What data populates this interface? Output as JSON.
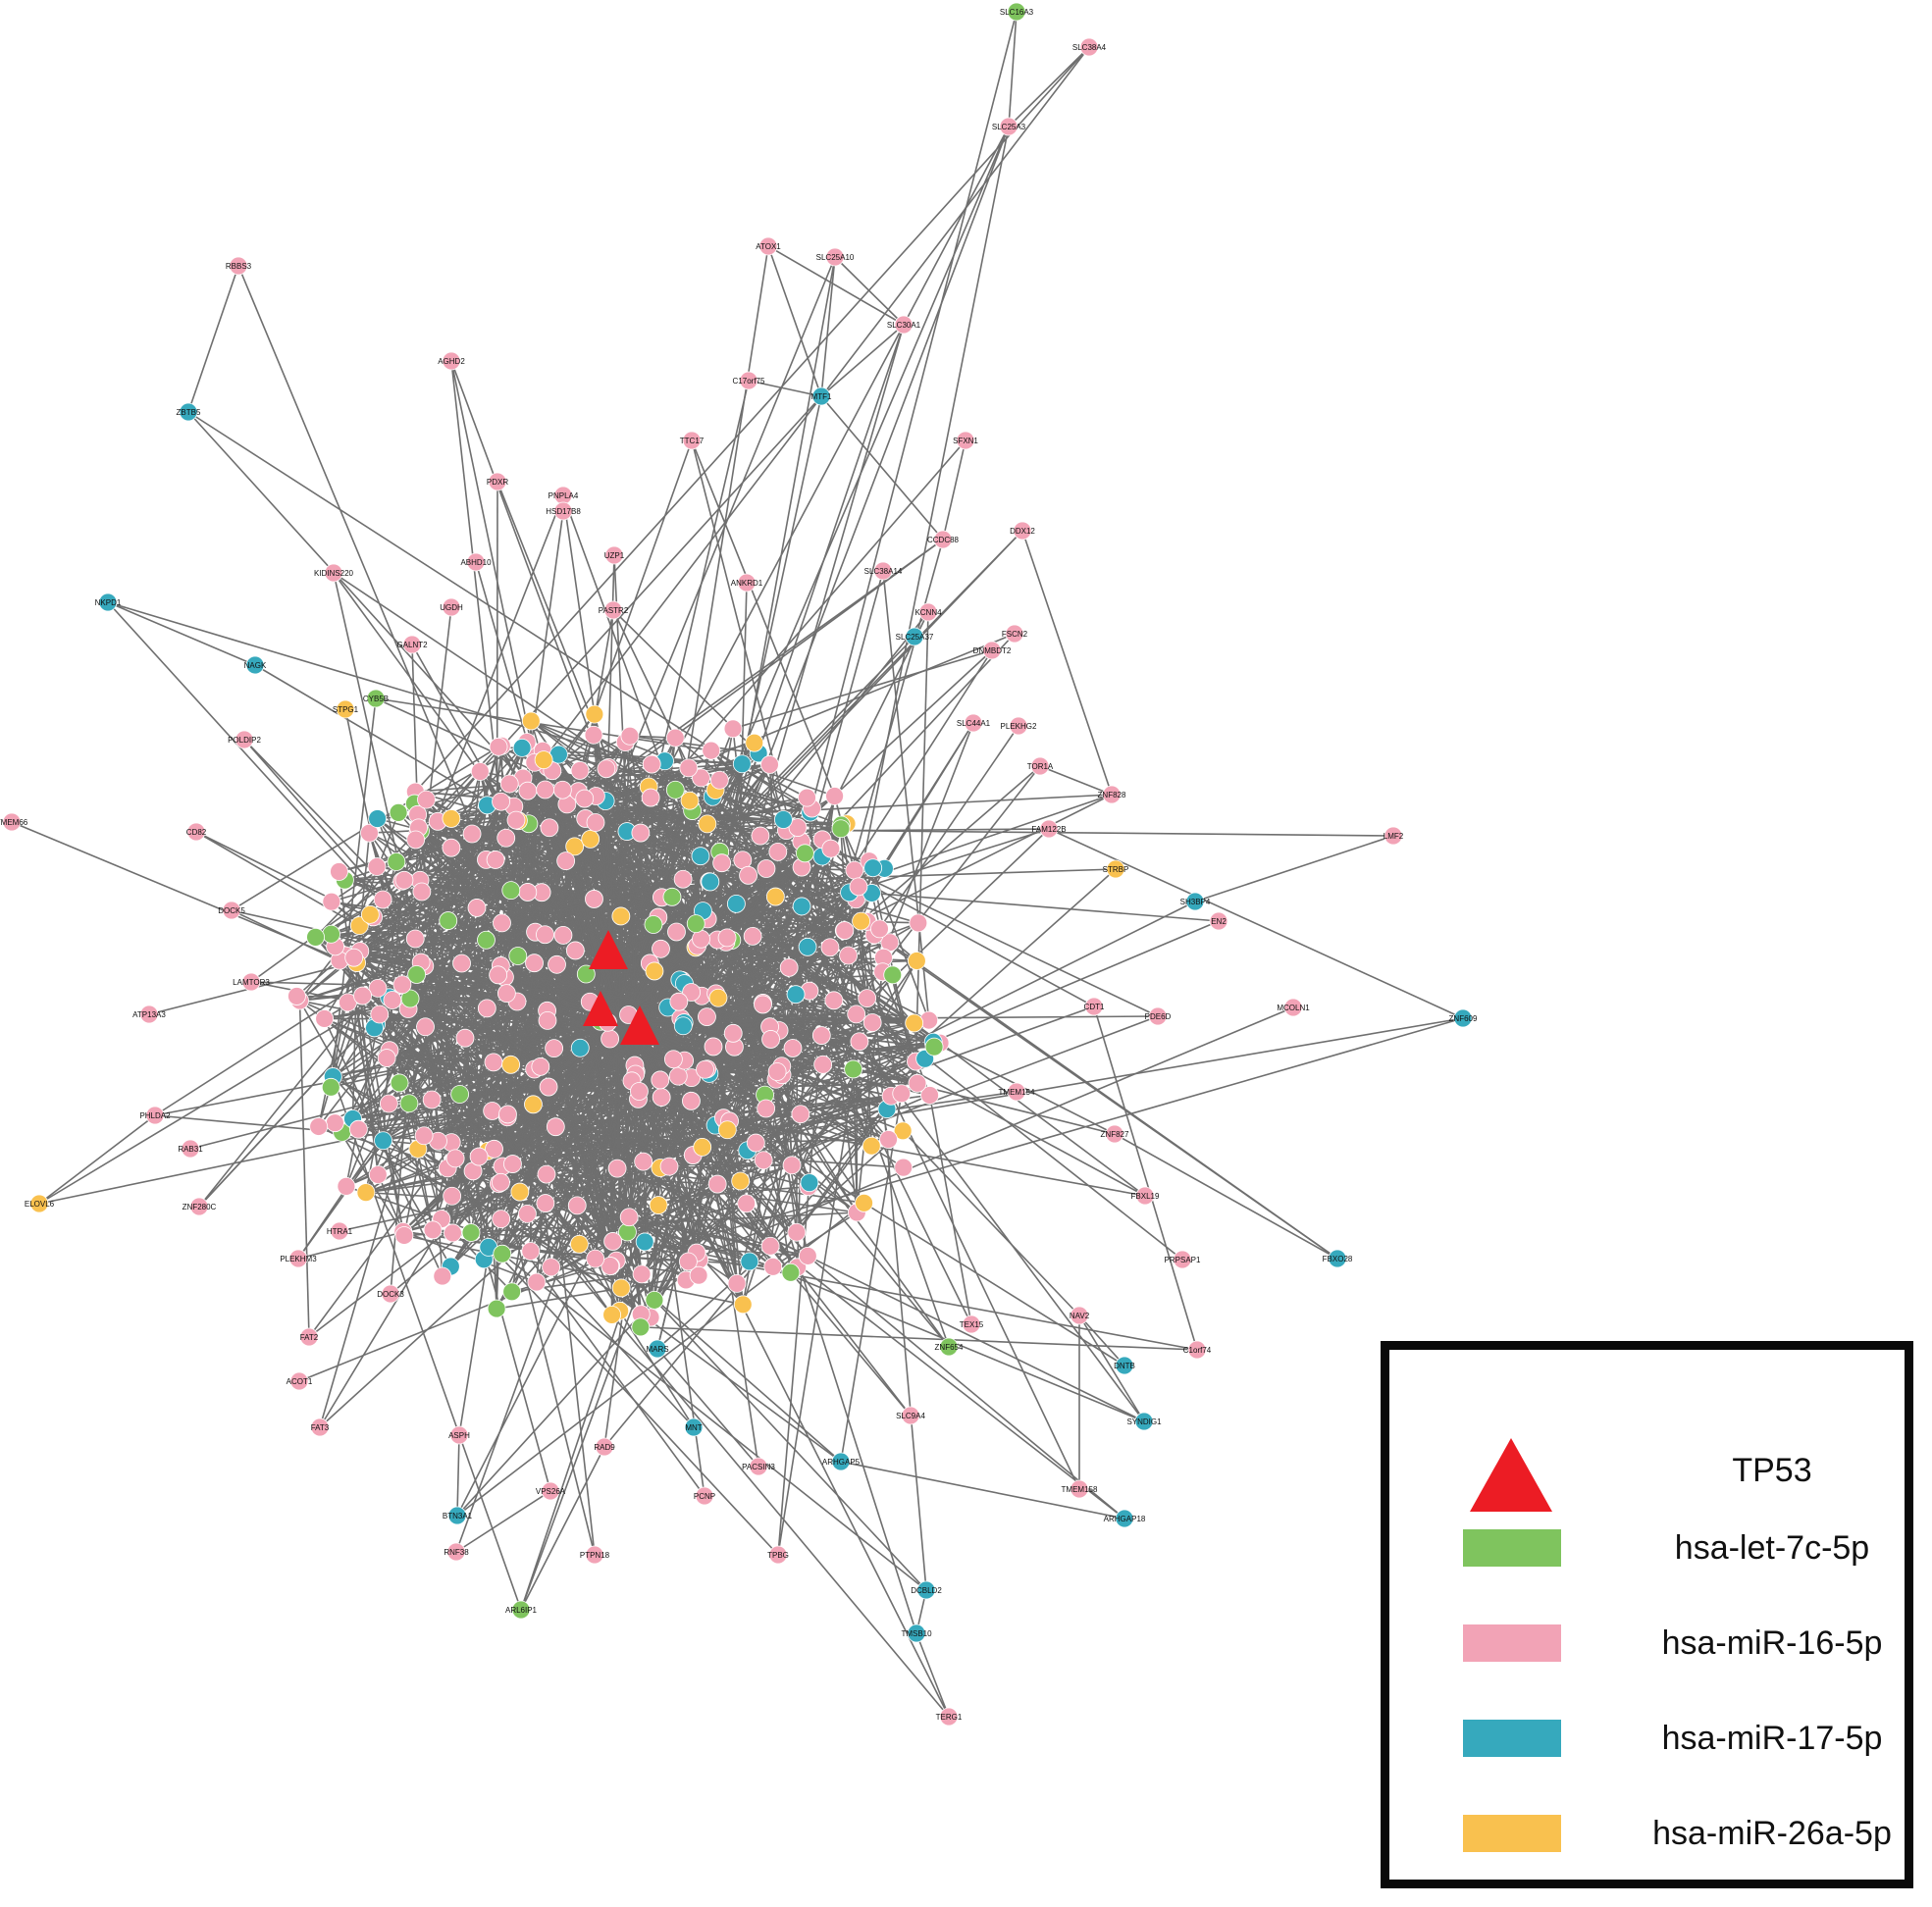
{
  "diagram": {
    "type": "network",
    "hub_node": "TP53",
    "colors": {
      "edge": "#6f6f6f",
      "hub": "#ec1c24",
      "hsa-let-7c-5p": "#7fc45e",
      "hsa-miR-16-5p": "#f2a3b6",
      "hsa-miR-17-5p": "#36a9bd",
      "hsa-miR-26a-5p": "#f9c14f"
    },
    "labeled_nodes": [
      {
        "id": "SLC16A3",
        "group": "hsa-let-7c-5p"
      },
      {
        "id": "SLC38A4",
        "group": "hsa-miR-16-5p"
      },
      {
        "id": "SLC25A3",
        "group": "hsa-miR-16-5p"
      },
      {
        "id": "ATOX1",
        "group": "hsa-miR-16-5p"
      },
      {
        "id": "SLC25A10",
        "group": "hsa-miR-16-5p"
      },
      {
        "id": "SLC30A1",
        "group": "hsa-miR-16-5p"
      },
      {
        "id": "RBBS3",
        "group": "hsa-miR-16-5p"
      },
      {
        "id": "ZBTB5",
        "group": "hsa-miR-17-5p"
      },
      {
        "id": "AGHD2",
        "group": "hsa-miR-16-5p"
      },
      {
        "id": "C17orf75",
        "group": "hsa-miR-16-5p"
      },
      {
        "id": "MTF1",
        "group": "hsa-miR-17-5p"
      },
      {
        "id": "TTC17",
        "group": "hsa-miR-16-5p"
      },
      {
        "id": "SFXN1",
        "group": "hsa-miR-16-5p"
      },
      {
        "id": "PDXR",
        "group": "hsa-miR-16-5p"
      },
      {
        "id": "PNPLA4",
        "group": "hsa-miR-16-5p"
      },
      {
        "id": "HSD17B8",
        "group": "hsa-miR-16-5p"
      },
      {
        "id": "DDX12",
        "group": "hsa-miR-16-5p"
      },
      {
        "id": "CCDC88",
        "group": "hsa-miR-16-5p"
      },
      {
        "id": "ABHD10",
        "group": "hsa-miR-16-5p"
      },
      {
        "id": "UZP1",
        "group": "hsa-miR-16-5p"
      },
      {
        "id": "KIDINS220",
        "group": "hsa-miR-16-5p"
      },
      {
        "id": "ANKRD1",
        "group": "hsa-miR-16-5p"
      },
      {
        "id": "SLC38A14",
        "group": "hsa-miR-16-5p"
      },
      {
        "id": "PASTR2",
        "group": "hsa-miR-16-5p"
      },
      {
        "id": "UGDH",
        "group": "hsa-miR-16-5p"
      },
      {
        "id": "NKPD1",
        "group": "hsa-miR-17-5p"
      },
      {
        "id": "KCNN4",
        "group": "hsa-miR-16-5p"
      },
      {
        "id": "SLC25A37",
        "group": "hsa-miR-17-5p"
      },
      {
        "id": "FSCN2",
        "group": "hsa-miR-16-5p"
      },
      {
        "id": "DNMBDT2",
        "group": "hsa-miR-16-5p"
      },
      {
        "id": "NAGK",
        "group": "hsa-miR-17-5p"
      },
      {
        "id": "GALNT2",
        "group": "hsa-miR-16-5p"
      },
      {
        "id": "CYB5B",
        "group": "hsa-let-7c-5p"
      },
      {
        "id": "STPG1",
        "group": "hsa-miR-26a-5p"
      },
      {
        "id": "POLDIP2",
        "group": "hsa-miR-16-5p"
      },
      {
        "id": "SLC44A1",
        "group": "hsa-miR-16-5p"
      },
      {
        "id": "PLEKHG2",
        "group": "hsa-miR-16-5p"
      },
      {
        "id": "TOR1A",
        "group": "hsa-miR-16-5p"
      },
      {
        "id": "ZNF828",
        "group": "hsa-miR-16-5p"
      },
      {
        "id": "TMEM66",
        "group": "hsa-miR-16-5p"
      },
      {
        "id": "CD82",
        "group": "hsa-miR-16-5p"
      },
      {
        "id": "FAM122B",
        "group": "hsa-miR-16-5p"
      },
      {
        "id": "LMF2",
        "group": "hsa-miR-16-5p"
      },
      {
        "id": "STRBP",
        "group": "hsa-miR-26a-5p"
      },
      {
        "id": "DOCK5",
        "group": "hsa-miR-16-5p"
      },
      {
        "id": "SH3BP4",
        "group": "hsa-miR-17-5p"
      },
      {
        "id": "EN2",
        "group": "hsa-miR-16-5p"
      },
      {
        "id": "LAMTOR3",
        "group": "hsa-miR-16-5p"
      },
      {
        "id": "ATP13A3",
        "group": "hsa-miR-16-5p"
      },
      {
        "id": "CDT1",
        "group": "hsa-miR-16-5p"
      },
      {
        "id": "PDE6D",
        "group": "hsa-miR-16-5p"
      },
      {
        "id": "MCOLN1",
        "group": "hsa-miR-16-5p"
      },
      {
        "id": "ZNF609",
        "group": "hsa-miR-17-5p"
      },
      {
        "id": "PHLDA2",
        "group": "hsa-miR-16-5p"
      },
      {
        "id": "RAB31",
        "group": "hsa-miR-16-5p"
      },
      {
        "id": "ELOVL6",
        "group": "hsa-miR-26a-5p"
      },
      {
        "id": "ZNF280C",
        "group": "hsa-miR-16-5p"
      },
      {
        "id": "TMEM154",
        "group": "hsa-miR-16-5p"
      },
      {
        "id": "ZNF827",
        "group": "hsa-miR-16-5p"
      },
      {
        "id": "FBXL19",
        "group": "hsa-miR-16-5p"
      },
      {
        "id": "PRPSAP1",
        "group": "hsa-miR-16-5p"
      },
      {
        "id": "FBXO28",
        "group": "hsa-miR-17-5p"
      },
      {
        "id": "PLEKHM3",
        "group": "hsa-miR-16-5p"
      },
      {
        "id": "HTRA1",
        "group": "hsa-miR-16-5p"
      },
      {
        "id": "DOCK3",
        "group": "hsa-miR-16-5p"
      },
      {
        "id": "FAT2",
        "group": "hsa-miR-16-5p"
      },
      {
        "id": "ACOT1",
        "group": "hsa-miR-16-5p"
      },
      {
        "id": "TEX15",
        "group": "hsa-miR-16-5p"
      },
      {
        "id": "ZNF654",
        "group": "hsa-let-7c-5p"
      },
      {
        "id": "NAV2",
        "group": "hsa-miR-16-5p"
      },
      {
        "id": "C1orf74",
        "group": "hsa-miR-16-5p"
      },
      {
        "id": "SYNDIG1",
        "group": "hsa-miR-17-5p"
      },
      {
        "id": "TMEM158",
        "group": "hsa-miR-16-5p"
      },
      {
        "id": "SLC9A4",
        "group": "hsa-miR-16-5p"
      },
      {
        "id": "FAT3",
        "group": "hsa-miR-16-5p"
      },
      {
        "id": "ASPH",
        "group": "hsa-miR-16-5p"
      },
      {
        "id": "MNT",
        "group": "hsa-miR-17-5p"
      },
      {
        "id": "ARHGAP5",
        "group": "hsa-miR-17-5p"
      },
      {
        "id": "DNTB",
        "group": "hsa-miR-17-5p"
      },
      {
        "id": "ARHGAP18",
        "group": "hsa-miR-17-5p"
      },
      {
        "id": "BTN3A1",
        "group": "hsa-miR-17-5p"
      },
      {
        "id": "PACSIN3",
        "group": "hsa-miR-16-5p"
      },
      {
        "id": "PCNP",
        "group": "hsa-miR-16-5p"
      },
      {
        "id": "TPBG",
        "group": "hsa-miR-16-5p"
      },
      {
        "id": "RNF38",
        "group": "hsa-miR-16-5p"
      },
      {
        "id": "PTPN18",
        "group": "hsa-miR-16-5p"
      },
      {
        "id": "DCBLD2",
        "group": "hsa-miR-17-5p"
      },
      {
        "id": "TMSB10",
        "group": "hsa-miR-17-5p"
      },
      {
        "id": "TERG1",
        "group": "hsa-miR-16-5p"
      },
      {
        "id": "ARL6IP1",
        "group": "hsa-let-7c-5p"
      },
      {
        "id": "VPS26A",
        "group": "hsa-miR-16-5p"
      },
      {
        "id": "RAD9",
        "group": "hsa-miR-16-5p"
      },
      {
        "id": "MARS",
        "group": "hsa-miR-17-5p"
      }
    ]
  },
  "legend": {
    "items": [
      {
        "label": "TP53",
        "shape": "triangle",
        "color": "#ec1c24"
      },
      {
        "label": "hsa-let-7c-5p",
        "shape": "rect",
        "color": "#7fc45e"
      },
      {
        "label": "hsa-miR-16-5p",
        "shape": "rect",
        "color": "#f2a3b6"
      },
      {
        "label": "hsa-miR-17-5p",
        "shape": "rect",
        "color": "#36a9bd"
      },
      {
        "label": "hsa-miR-26a-5p",
        "shape": "rect",
        "color": "#f9c14f"
      }
    ]
  }
}
